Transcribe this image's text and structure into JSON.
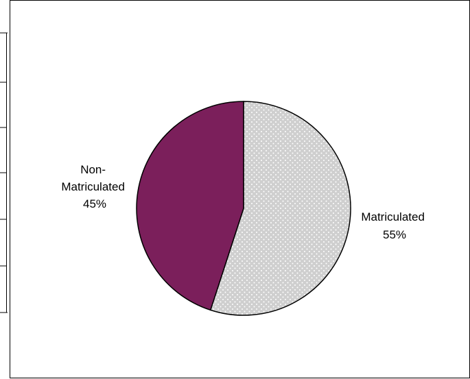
{
  "chart_data": {
    "type": "pie",
    "title": "",
    "slices": [
      {
        "label": "Matriculated",
        "value": 55,
        "value_label": "55%",
        "color": "#cfcfcf",
        "pattern": "dotted"
      },
      {
        "label": "Non-Matriculated",
        "value": 45,
        "value_label": "45%",
        "color": "#7b1f5b"
      }
    ],
    "label_lines": {
      "matriculated": [
        "Matriculated",
        "55%"
      ],
      "non_matriculated": [
        "Non-",
        "Matriculated",
        "45%"
      ]
    },
    "legend": "none"
  }
}
